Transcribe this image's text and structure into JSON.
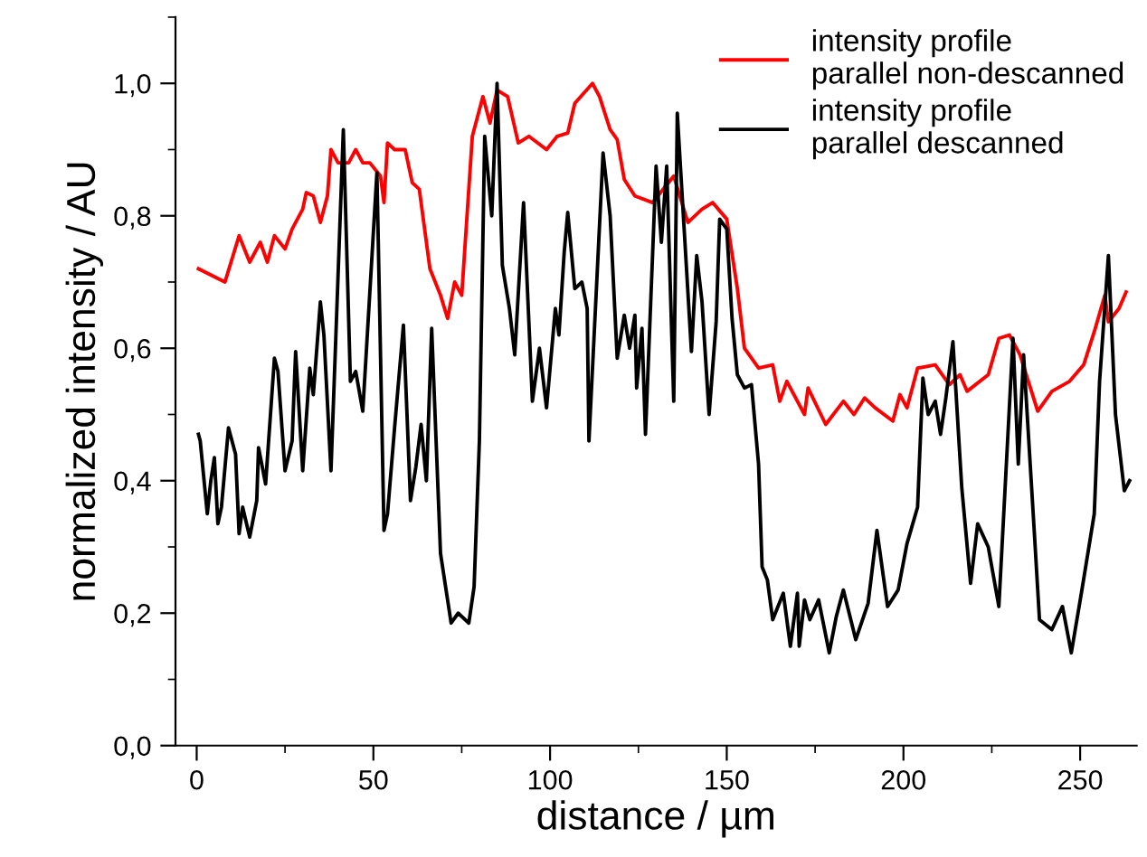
{
  "chart_data": {
    "type": "line",
    "xlabel": "distance / µm",
    "ylabel": "normalized intensity / AU",
    "xlim": [
      -6,
      266
    ],
    "ylim": [
      0,
      1.1
    ],
    "xticks": [
      0,
      50,
      100,
      150,
      200,
      250
    ],
    "yticks": [
      {
        "value": 0,
        "label": "0,0"
      },
      {
        "value": 0.2,
        "label": "0,2"
      },
      {
        "value": 0.4,
        "label": "0,4"
      },
      {
        "value": 0.6,
        "label": "0,6"
      },
      {
        "value": 0.8,
        "label": "0,8"
      },
      {
        "value": 1.0,
        "label": "1,0"
      }
    ],
    "grid": false,
    "legend": "top right",
    "marker": "none",
    "line_style": "solid",
    "series": [
      {
        "name": "intensity profile\nparallel non-descanned",
        "color": "#ff0000",
        "x": [
          0.5,
          8,
          12,
          15,
          18,
          20,
          22,
          25,
          27,
          30,
          31,
          33,
          35,
          37,
          38,
          40,
          43,
          45,
          47,
          49,
          52,
          53,
          54,
          56,
          59,
          61,
          63,
          66,
          69,
          71,
          73,
          75,
          78,
          81,
          83,
          85,
          88,
          91,
          94,
          99,
          102,
          105,
          107,
          112,
          114,
          117,
          119,
          121,
          124,
          129,
          135,
          139,
          143,
          146,
          150,
          153,
          155,
          159,
          163,
          165,
          167,
          172,
          173,
          178,
          183,
          186,
          189,
          192,
          197,
          199,
          201,
          204,
          209,
          213,
          216,
          218,
          224,
          227,
          230,
          233,
          238,
          242,
          247,
          251,
          254,
          257,
          258,
          261,
          263
        ],
        "values": [
          0.72,
          0.7,
          0.77,
          0.73,
          0.76,
          0.73,
          0.77,
          0.75,
          0.78,
          0.81,
          0.835,
          0.83,
          0.79,
          0.83,
          0.9,
          0.88,
          0.88,
          0.9,
          0.88,
          0.88,
          0.86,
          0.82,
          0.91,
          0.9,
          0.9,
          0.85,
          0.84,
          0.72,
          0.68,
          0.645,
          0.7,
          0.68,
          0.92,
          0.98,
          0.94,
          0.99,
          0.98,
          0.91,
          0.92,
          0.9,
          0.92,
          0.925,
          0.97,
          1.0,
          0.98,
          0.93,
          0.915,
          0.855,
          0.83,
          0.82,
          0.86,
          0.79,
          0.81,
          0.82,
          0.795,
          0.69,
          0.6,
          0.57,
          0.575,
          0.52,
          0.55,
          0.5,
          0.54,
          0.485,
          0.52,
          0.5,
          0.525,
          0.51,
          0.49,
          0.53,
          0.51,
          0.57,
          0.575,
          0.545,
          0.56,
          0.535,
          0.56,
          0.615,
          0.62,
          0.59,
          0.505,
          0.535,
          0.55,
          0.575,
          0.625,
          0.68,
          0.64,
          0.66,
          0.685
        ]
      },
      {
        "name": "intensity profile\nparallel descanned",
        "color": "#000000",
        "x": [
          0.5,
          1,
          3,
          4,
          5,
          6,
          7,
          9,
          11,
          12,
          13,
          15,
          17,
          17.5,
          19.5,
          22,
          23,
          25,
          27,
          28,
          30,
          32,
          33,
          35,
          36,
          38,
          41.5,
          43.5,
          45,
          47,
          51,
          53,
          54,
          56,
          58.5,
          60.5,
          62,
          63.5,
          65,
          66.5,
          69,
          72,
          74,
          77,
          78.5,
          80,
          81.5,
          83.5,
          85,
          86.5,
          88.5,
          90,
          92.5,
          95,
          97,
          99,
          101.5,
          102.5,
          104,
          105,
          107,
          109,
          110.5,
          111,
          115,
          117,
          119,
          121,
          122.5,
          124,
          124.5,
          126,
          127,
          130,
          131.5,
          133,
          135,
          136,
          140,
          141.5,
          143,
          145,
          147,
          148,
          150,
          151.5,
          153,
          155,
          157,
          159,
          160,
          161.5,
          163,
          166,
          168,
          170,
          170.5,
          172,
          173.5,
          176,
          179,
          181,
          183,
          186.5,
          190,
          192.5,
          195.5,
          198.5,
          201,
          204,
          205.5,
          207,
          209,
          210.5,
          212,
          214,
          216.5,
          219,
          221,
          224,
          227,
          231,
          232.5,
          234,
          237,
          238.5,
          242,
          245,
          247.5,
          250.5,
          254,
          255.5,
          258,
          260,
          262.5,
          264
        ],
        "values": [
          0.47,
          0.46,
          0.35,
          0.4,
          0.435,
          0.335,
          0.36,
          0.48,
          0.44,
          0.32,
          0.36,
          0.315,
          0.37,
          0.45,
          0.395,
          0.585,
          0.565,
          0.415,
          0.46,
          0.595,
          0.415,
          0.57,
          0.53,
          0.67,
          0.62,
          0.415,
          0.93,
          0.55,
          0.565,
          0.505,
          0.865,
          0.325,
          0.35,
          0.48,
          0.635,
          0.37,
          0.42,
          0.485,
          0.4,
          0.63,
          0.29,
          0.185,
          0.2,
          0.185,
          0.24,
          0.46,
          0.92,
          0.8,
          1.0,
          0.725,
          0.66,
          0.59,
          0.82,
          0.52,
          0.6,
          0.51,
          0.66,
          0.62,
          0.745,
          0.805,
          0.69,
          0.7,
          0.66,
          0.46,
          0.895,
          0.8,
          0.585,
          0.65,
          0.6,
          0.65,
          0.54,
          0.63,
          0.47,
          0.875,
          0.76,
          0.875,
          0.52,
          0.955,
          0.595,
          0.74,
          0.67,
          0.5,
          0.64,
          0.795,
          0.78,
          0.645,
          0.56,
          0.54,
          0.545,
          0.425,
          0.27,
          0.25,
          0.19,
          0.23,
          0.15,
          0.23,
          0.15,
          0.22,
          0.19,
          0.22,
          0.14,
          0.195,
          0.235,
          0.16,
          0.215,
          0.325,
          0.21,
          0.235,
          0.305,
          0.36,
          0.555,
          0.5,
          0.52,
          0.47,
          0.525,
          0.61,
          0.39,
          0.245,
          0.335,
          0.3,
          0.21,
          0.615,
          0.425,
          0.59,
          0.325,
          0.19,
          0.175,
          0.21,
          0.14,
          0.235,
          0.35,
          0.55,
          0.74,
          0.5,
          0.385,
          0.4
        ]
      }
    ]
  }
}
